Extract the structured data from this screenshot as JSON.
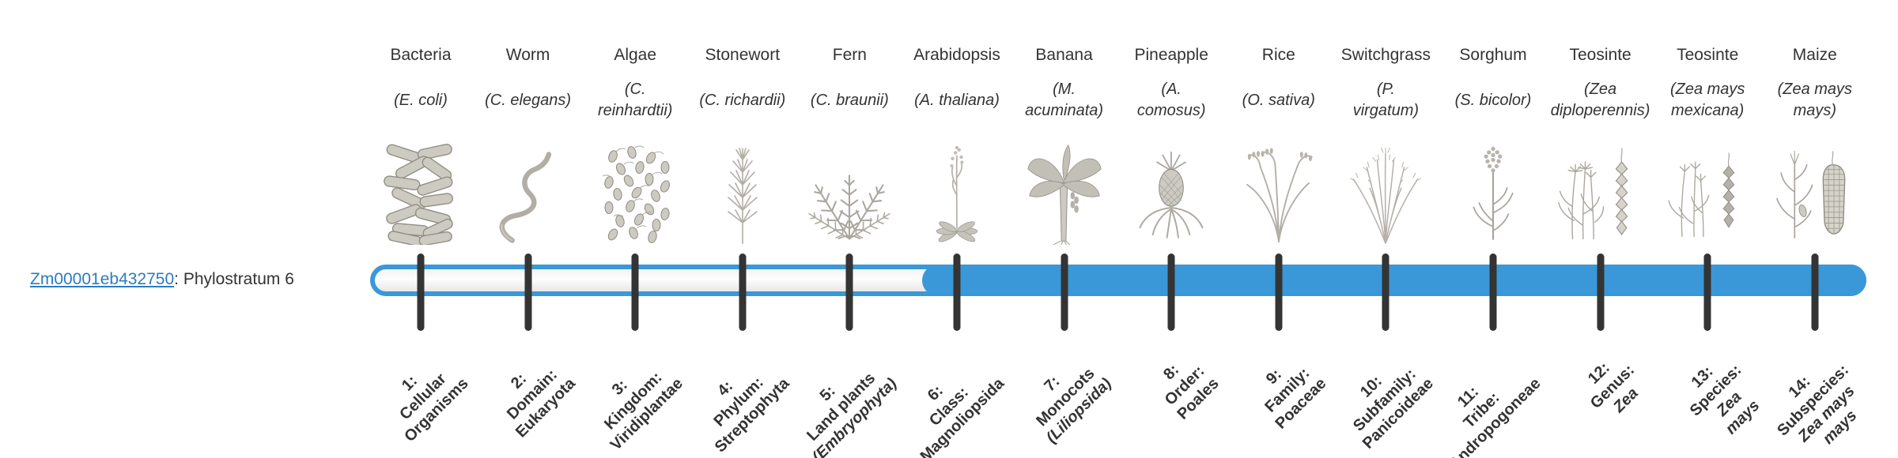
{
  "gene": {
    "id": "Zm00001eb432750",
    "suffix": ": Phylostratum 6",
    "phylostratum": 6
  },
  "colors": {
    "bar_blue": "#3a98d8",
    "tick": "#343434",
    "link": "#2b7cbe",
    "text": "#333333"
  },
  "timeline": {
    "strata": [
      {
        "n": 1,
        "organism": "Bacteria",
        "sci_lines": [
          "(E. coli)"
        ],
        "icon": "bacteria-icon",
        "filled": false,
        "label_lines": [
          {
            "text": "1:"
          },
          {
            "text": "Cellular"
          },
          {
            "text": "Organisms"
          }
        ]
      },
      {
        "n": 2,
        "organism": "Worm",
        "sci_lines": [
          "(C. elegans)"
        ],
        "icon": "worm-icon",
        "filled": false,
        "label_lines": [
          {
            "text": "2:"
          },
          {
            "text": "Domain:"
          },
          {
            "text": "Eukaryota"
          }
        ]
      },
      {
        "n": 3,
        "organism": "Algae",
        "sci_lines": [
          "(C.",
          "reinhardtii)"
        ],
        "icon": "algae-icon",
        "filled": false,
        "label_lines": [
          {
            "text": "3:"
          },
          {
            "text": "Kingdom:"
          },
          {
            "text": "Viridiplantae"
          }
        ]
      },
      {
        "n": 4,
        "organism": "Stonewort",
        "sci_lines": [
          "(C. richardii)"
        ],
        "icon": "stonewort-icon",
        "filled": false,
        "label_lines": [
          {
            "text": "4:"
          },
          {
            "text": "Phylum:"
          },
          {
            "text": "Streptophyta"
          }
        ]
      },
      {
        "n": 5,
        "organism": "Fern",
        "sci_lines": [
          "(C. braunii)"
        ],
        "icon": "fern-icon",
        "filled": false,
        "label_lines": [
          {
            "text": "5:"
          },
          {
            "text": "Land plants"
          },
          {
            "text": "(Embryophyta)",
            "italic": true
          }
        ]
      },
      {
        "n": 6,
        "organism": "Arabidopsis",
        "sci_lines": [
          "(A. thaliana)"
        ],
        "icon": "arabidopsis-icon",
        "filled": true,
        "label_lines": [
          {
            "text": "6:"
          },
          {
            "text": "Class:"
          },
          {
            "text": "Magnoliopsida"
          }
        ]
      },
      {
        "n": 7,
        "organism": "Banana",
        "sci_lines": [
          "(M.",
          "acuminata)"
        ],
        "icon": "banana-icon",
        "filled": true,
        "label_lines": [
          {
            "text": "7:"
          },
          {
            "text": "Monocots"
          },
          {
            "text": "(Liliopsida)",
            "italic": true
          }
        ]
      },
      {
        "n": 8,
        "organism": "Pineapple",
        "sci_lines": [
          "(A.",
          "comosus)"
        ],
        "icon": "pineapple-icon",
        "filled": true,
        "label_lines": [
          {
            "text": "8:"
          },
          {
            "text": "Order:"
          },
          {
            "text": "Poales"
          }
        ]
      },
      {
        "n": 9,
        "organism": "Rice",
        "sci_lines": [
          "(O. sativa)"
        ],
        "icon": "rice-icon",
        "filled": true,
        "label_lines": [
          {
            "text": "9:"
          },
          {
            "text": "Family:"
          },
          {
            "text": "Poaceae"
          }
        ]
      },
      {
        "n": 10,
        "organism": "Switchgrass",
        "sci_lines": [
          "(P.",
          "virgatum)"
        ],
        "icon": "switchgrass-icon",
        "filled": true,
        "label_lines": [
          {
            "text": "10:"
          },
          {
            "text": "Subfamily:"
          },
          {
            "text": "Panicoideae"
          }
        ]
      },
      {
        "n": 11,
        "organism": "Sorghum",
        "sci_lines": [
          "(S. bicolor)"
        ],
        "icon": "sorghum-icon",
        "filled": true,
        "label_lines": [
          {
            "text": "11:"
          },
          {
            "text": "Tribe:"
          },
          {
            "text": "Andropogoneae"
          }
        ]
      },
      {
        "n": 12,
        "organism": "Teosinte",
        "sci_lines": [
          "(Zea",
          "diploperennis)"
        ],
        "icon": "teosinte-diplo-icon",
        "filled": true,
        "label_lines": [
          {
            "text": "12:"
          },
          {
            "text": "Genus:"
          },
          {
            "text": "Zea",
            "italic": true
          }
        ]
      },
      {
        "n": 13,
        "organism": "Teosinte",
        "sci_lines": [
          "(Zea mays",
          "mexicana)"
        ],
        "icon": "teosinte-mex-icon",
        "filled": true,
        "label_lines": [
          {
            "text": "13:"
          },
          {
            "text": "Species:"
          },
          {
            "text": "Zea",
            "italic": true
          },
          {
            "text": "mays",
            "italic": true
          }
        ]
      },
      {
        "n": 14,
        "organism": "Maize",
        "sci_lines": [
          "(Zea mays",
          "mays)"
        ],
        "icon": "maize-icon",
        "filled": true,
        "label_lines": [
          {
            "text": "14:"
          },
          {
            "text": "Subspecies:"
          },
          {
            "text": "Zea mays",
            "italic": true
          },
          {
            "text": "mays",
            "italic": true
          }
        ]
      }
    ]
  }
}
